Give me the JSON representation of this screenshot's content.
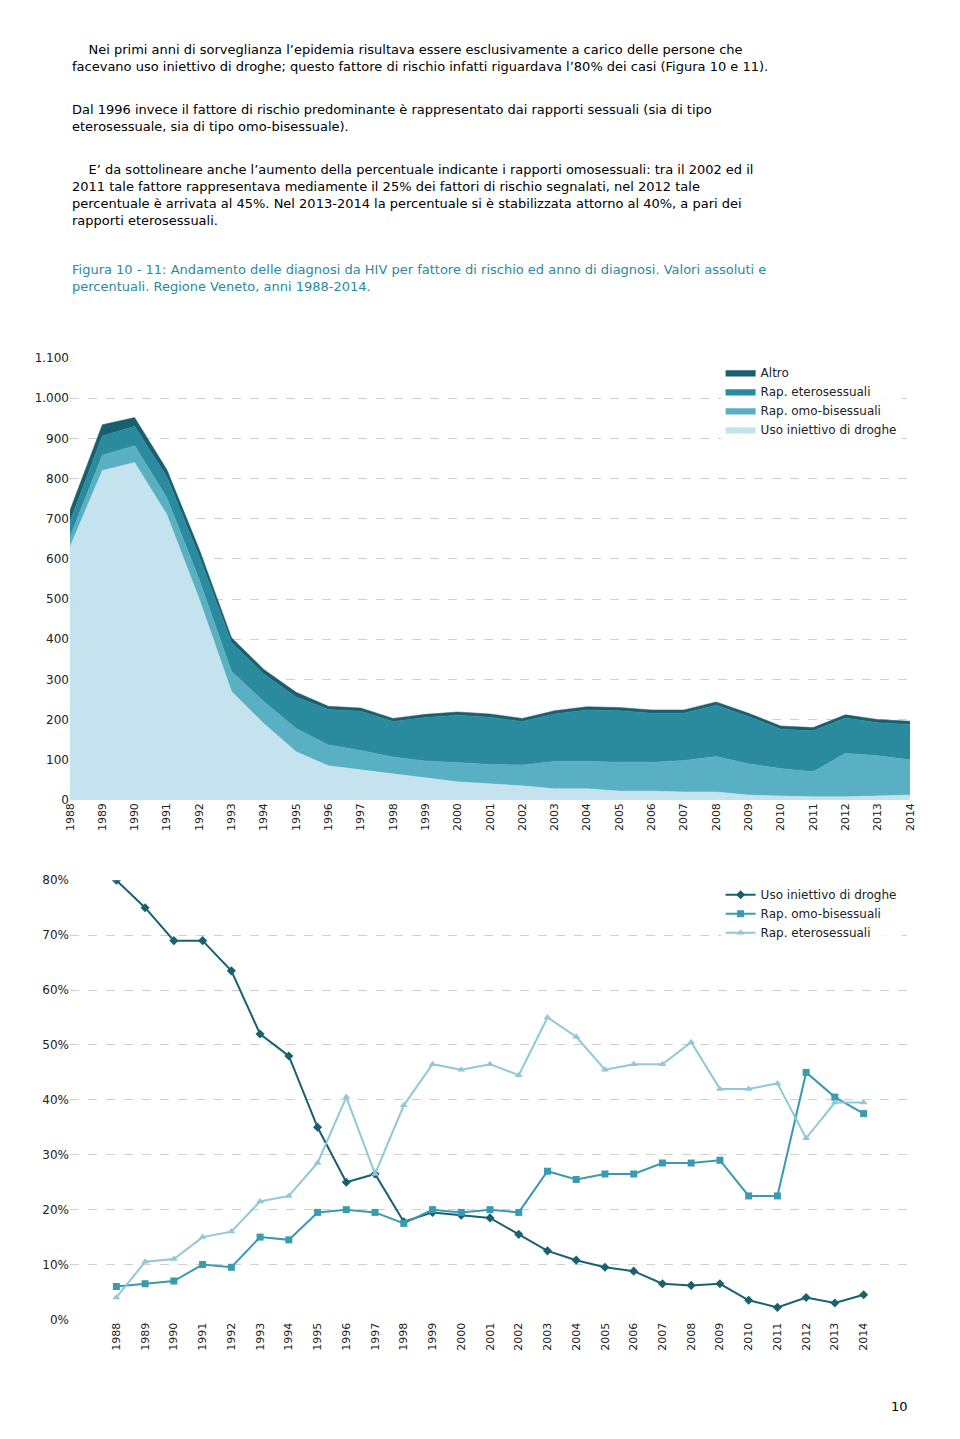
{
  "title": {
    "text": "Figura 10 - 11: Andamento delle diagnosi da HIV per fattore di rischio ed anno di diagnosi. Valori assoluti e\npercentuali. Regione Veneto, anni 1988-2014.",
    "color": "#2a8a9e"
  },
  "paragraphs": [
    "    Nei primi anni di sorveglianza l’epidemia risultava essere esclusivamente a carico delle persone che\nfacevano uso iniettivo di droghe; questo fattore di rischio infatti riguardava l’80% dei casi (Figura 10 e 11).",
    "Dal 1996 invece il fattore di rischio predominante è rappresentato dai rapporti sessuali (sia di tipo\neterosessuale, sia di tipo omo-bisessuale).",
    "    E’ da sottolineare anche l’aumento della percentuale indicante i rapporti omosessuali: tra il 2002 ed il\n2011 tale fattore rappresentava mediamente il 25% dei fattori di rischio segnalati, nel 2012 tale\npercentuale è arrivata al 45%. Nel 2013-2014 la percentuale si è stabilizzata attorno al 40%, a pari dei\nrapporti eterosessuali."
  ],
  "page_number": "10",
  "chart_data": [
    {
      "type": "area",
      "stacked": true,
      "categories": [
        "1988",
        "1989",
        "1990",
        "1991",
        "1992",
        "1993",
        "1994",
        "1995",
        "1996",
        "1997",
        "1998",
        "1999",
        "2000",
        "2001",
        "2002",
        "2003",
        "2004",
        "2005",
        "2006",
        "2007",
        "2008",
        "2009",
        "2010",
        "2011",
        "2012",
        "2013",
        "2014"
      ],
      "series": [
        {
          "name": "Uso iniettivo di droghe",
          "color": "#c5e3ef",
          "values": [
            630,
            820,
            840,
            710,
            500,
            270,
            190,
            120,
            85,
            75,
            65,
            55,
            45,
            40,
            35,
            28,
            28,
            22,
            22,
            20,
            20,
            12,
            10,
            8,
            8,
            10,
            12
          ]
        },
        {
          "name": "Rap. omo-bisessuali",
          "color": "#5ab0c3",
          "values": [
            25,
            38,
            42,
            42,
            48,
            50,
            55,
            58,
            52,
            48,
            42,
            42,
            48,
            48,
            52,
            68,
            68,
            72,
            72,
            78,
            88,
            78,
            68,
            62,
            108,
            100,
            88
          ]
        },
        {
          "name": "Rap. eterosessuali",
          "color": "#2a8a9e",
          "values": [
            38,
            48,
            48,
            52,
            58,
            72,
            68,
            78,
            88,
            98,
            88,
            108,
            118,
            118,
            108,
            118,
            128,
            128,
            122,
            118,
            128,
            118,
            98,
            102,
            88,
            82,
            88
          ]
        },
        {
          "name": "Altro",
          "color": "#1a5f6e",
          "values": [
            28,
            28,
            22,
            18,
            18,
            12,
            12,
            12,
            8,
            8,
            8,
            8,
            8,
            8,
            8,
            8,
            8,
            8,
            8,
            8,
            8,
            8,
            8,
            8,
            8,
            8,
            8
          ]
        }
      ],
      "ylim": [
        0,
        1100
      ],
      "yticks": [
        0,
        100,
        200,
        300,
        400,
        500,
        600,
        700,
        800,
        900,
        {
          "value": 1000,
          "label": "1.000"
        },
        {
          "value": 1100,
          "label": "1.100"
        }
      ],
      "grid": true,
      "legend": "upper right"
    },
    {
      "type": "line",
      "categories": [
        "1988",
        "1989",
        "1990",
        "1991",
        "1992",
        "1993",
        "1994",
        "1995",
        "1996",
        "1997",
        "1998",
        "1999",
        "2000",
        "2001",
        "2002",
        "2003",
        "2004",
        "2005",
        "2006",
        "2007",
        "2008",
        "2009",
        "2010",
        "2011",
        "2012",
        "2013",
        "2014"
      ],
      "series": [
        {
          "name": "Uso iniettivo di droghe",
          "color": "#1a6070",
          "marker": "diamond",
          "values": [
            0.8,
            0.75,
            0.69,
            0.69,
            0.635,
            0.52,
            0.48,
            0.35,
            0.25,
            0.265,
            0.178,
            0.195,
            0.19,
            0.185,
            0.155,
            0.125,
            0.108,
            0.095,
            0.088,
            0.065,
            0.062,
            0.065,
            0.035,
            0.022,
            0.04,
            0.03,
            0.045
          ]
        },
        {
          "name": "Rap. omo-bisessuali",
          "color": "#3a9ab0",
          "marker": "square",
          "values": [
            0.06,
            0.065,
            0.07,
            0.1,
            0.095,
            0.15,
            0.145,
            0.195,
            0.2,
            0.195,
            0.175,
            0.2,
            0.195,
            0.2,
            0.195,
            0.27,
            0.255,
            0.265,
            0.265,
            0.285,
            0.285,
            0.29,
            0.225,
            0.225,
            0.45,
            0.405,
            0.375
          ]
        },
        {
          "name": "Rap. eterosessuali",
          "color": "#90c8d8",
          "marker": "triangle-up",
          "values": [
            0.04,
            0.105,
            0.11,
            0.15,
            0.16,
            0.215,
            0.225,
            0.285,
            0.405,
            0.265,
            0.39,
            0.465,
            0.455,
            0.465,
            0.445,
            0.55,
            0.515,
            0.455,
            0.465,
            0.465,
            0.505,
            0.42,
            0.42,
            0.43,
            0.33,
            0.395,
            0.395
          ]
        }
      ],
      "ylim": [
        0,
        0.8
      ],
      "yticks": [
        {
          "value": 0,
          "label": "0%"
        },
        {
          "value": 0.1,
          "label": "10%"
        },
        {
          "value": 0.2,
          "label": "20%"
        },
        {
          "value": 0.3,
          "label": "30%"
        },
        {
          "value": 0.4,
          "label": "40%"
        },
        {
          "value": 0.5,
          "label": "50%"
        },
        {
          "value": 0.6,
          "label": "60%"
        },
        {
          "value": 0.7,
          "label": "70%"
        },
        {
          "value": 0.8,
          "label": "80%"
        }
      ],
      "grid": true,
      "legend": "upper right"
    }
  ]
}
